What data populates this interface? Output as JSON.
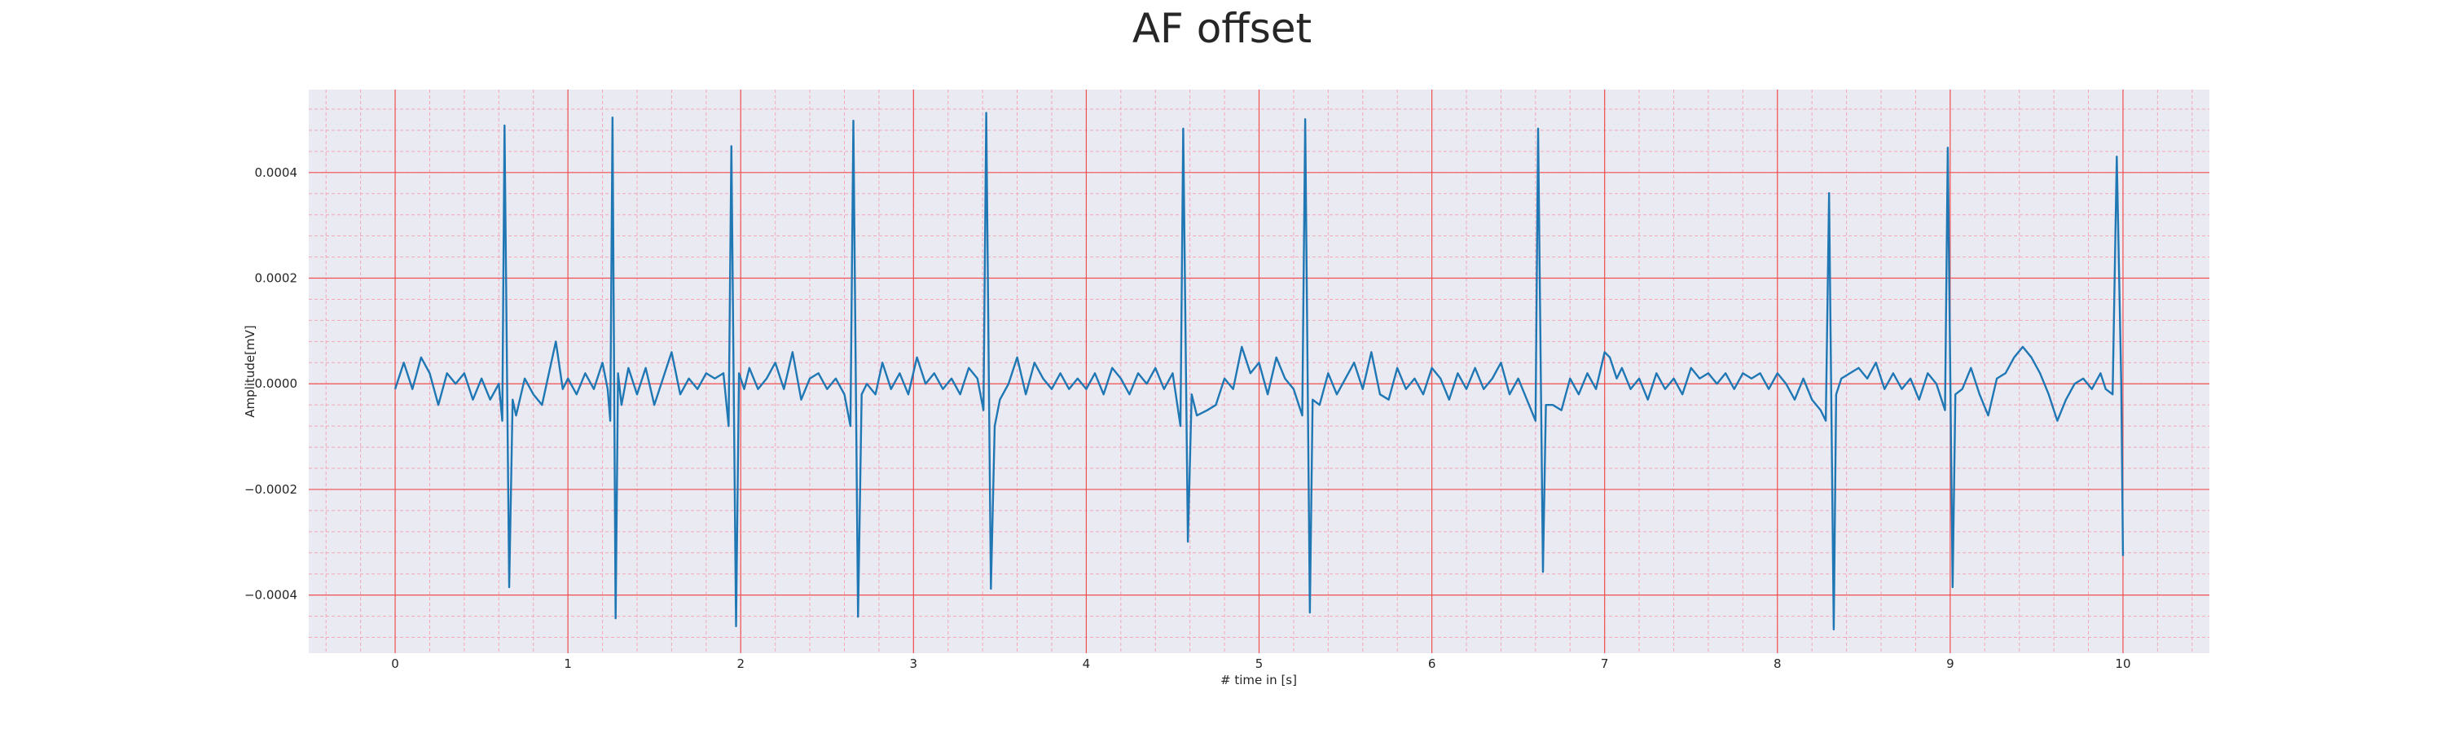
{
  "chart_data": {
    "type": "line",
    "title": "AF offset",
    "xlabel": "# time in [s]",
    "ylabel": "Amplitude[mV]",
    "color": "#1f77b4",
    "grid": true,
    "minor_grid": true,
    "xlim": [
      -0.5,
      10.5
    ],
    "xticks": [
      0,
      1,
      2,
      3,
      4,
      5,
      6,
      7,
      8,
      9,
      10
    ],
    "ylim": [
      -0.00051,
      0.000557
    ],
    "yticks": [
      {
        "value": -0.0004,
        "label": "−0.0004"
      },
      {
        "value": -0.0002,
        "label": "−0.0002"
      },
      {
        "value": 0,
        "label": "0.0000"
      },
      0.0002,
      0.0004
    ],
    "x": [
      0,
      0.05,
      0.1,
      0.15,
      0.2,
      0.25,
      0.3,
      0.35,
      0.4,
      0.45,
      0.5,
      0.55,
      0.6,
      0.62,
      0.633,
      0.66,
      0.68,
      0.7,
      0.75,
      0.8,
      0.85,
      0.93,
      0.97,
      1.0,
      1.05,
      1.1,
      1.15,
      1.2,
      1.23,
      1.245,
      1.258,
      1.276,
      1.29,
      1.31,
      1.35,
      1.4,
      1.45,
      1.5,
      1.55,
      1.6,
      1.65,
      1.7,
      1.75,
      1.8,
      1.85,
      1.9,
      1.93,
      1.946,
      1.973,
      1.99,
      2.02,
      2.05,
      2.1,
      2.15,
      2.2,
      2.25,
      2.3,
      2.35,
      2.4,
      2.45,
      2.5,
      2.55,
      2.6,
      2.635,
      2.652,
      2.679,
      2.7,
      2.73,
      2.78,
      2.82,
      2.87,
      2.92,
      2.97,
      3.02,
      3.07,
      3.12,
      3.17,
      3.22,
      3.27,
      3.32,
      3.37,
      3.405,
      3.421,
      3.448,
      3.47,
      3.5,
      3.55,
      3.6,
      3.65,
      3.7,
      3.75,
      3.8,
      3.85,
      3.9,
      3.95,
      4.0,
      4.05,
      4.1,
      4.15,
      4.2,
      4.25,
      4.3,
      4.35,
      4.4,
      4.45,
      4.5,
      4.545,
      4.561,
      4.588,
      4.61,
      4.64,
      4.7,
      4.75,
      4.8,
      4.85,
      4.9,
      4.95,
      5.0,
      5.05,
      5.1,
      5.15,
      5.2,
      5.25,
      5.267,
      5.294,
      5.31,
      5.35,
      5.4,
      5.45,
      5.5,
      5.55,
      5.6,
      5.65,
      5.7,
      5.75,
      5.8,
      5.85,
      5.9,
      5.95,
      6.0,
      6.05,
      6.1,
      6.15,
      6.2,
      6.25,
      6.3,
      6.35,
      6.4,
      6.45,
      6.5,
      6.55,
      6.6,
      6.615,
      6.643,
      6.66,
      6.7,
      6.75,
      6.8,
      6.85,
      6.9,
      6.95,
      7.0,
      7.03,
      7.07,
      7.1,
      7.15,
      7.2,
      7.25,
      7.3,
      7.35,
      7.4,
      7.45,
      7.5,
      7.55,
      7.6,
      7.65,
      7.7,
      7.75,
      7.8,
      7.85,
      7.9,
      7.95,
      8.0,
      8.05,
      8.1,
      8.15,
      8.2,
      8.25,
      8.28,
      8.299,
      8.326,
      8.34,
      8.37,
      8.42,
      8.47,
      8.52,
      8.57,
      8.62,
      8.67,
      8.72,
      8.77,
      8.82,
      8.87,
      8.92,
      8.97,
      8.986,
      9.014,
      9.03,
      9.07,
      9.12,
      9.17,
      9.22,
      9.27,
      9.32,
      9.37,
      9.42,
      9.47,
      9.52,
      9.57,
      9.62,
      9.67,
      9.72,
      9.77,
      9.82,
      9.87,
      9.9,
      9.94,
      9.964,
      9.99,
      10.0
    ],
    "values": [
      -1e-05,
      4e-05,
      -1e-05,
      5e-05,
      2e-05,
      -4e-05,
      2e-05,
      0,
      2e-05,
      -3e-05,
      1e-05,
      -3e-05,
      0,
      -7e-05,
      0.000489,
      -0.000385,
      -3e-05,
      -6e-05,
      1e-05,
      -2e-05,
      -4e-05,
      8e-05,
      -1e-05,
      1e-05,
      -2e-05,
      2e-05,
      -1e-05,
      4e-05,
      -1e-05,
      -7e-05,
      0.000504,
      -0.000444,
      2e-05,
      -4e-05,
      3e-05,
      -2e-05,
      3e-05,
      -4e-05,
      1e-05,
      6e-05,
      -2e-05,
      1e-05,
      -1e-05,
      2e-05,
      1e-05,
      2e-05,
      -8e-05,
      0.00045,
      -0.000459,
      2e-05,
      -1e-05,
      3e-05,
      -1e-05,
      1e-05,
      4e-05,
      -1e-05,
      6e-05,
      -3e-05,
      1e-05,
      2e-05,
      -1e-05,
      1e-05,
      -2e-05,
      -8e-05,
      0.000498,
      -0.000441,
      -2e-05,
      0,
      -2e-05,
      4e-05,
      -1e-05,
      2e-05,
      -2e-05,
      5e-05,
      0,
      2e-05,
      -1e-05,
      1e-05,
      -2e-05,
      3e-05,
      1e-05,
      -5e-05,
      0.000513,
      -0.000388,
      -8e-05,
      -3e-05,
      0,
      5e-05,
      -2e-05,
      4e-05,
      1e-05,
      -1e-05,
      2e-05,
      -1e-05,
      1e-05,
      -1e-05,
      2e-05,
      -2e-05,
      3e-05,
      1e-05,
      -2e-05,
      2e-05,
      0,
      3e-05,
      -1e-05,
      2e-05,
      -8e-05,
      0.000483,
      -0.000299,
      -2e-05,
      -6e-05,
      -5e-05,
      -4e-05,
      1e-05,
      -1e-05,
      7e-05,
      2e-05,
      4e-05,
      -2e-05,
      5e-05,
      1e-05,
      -1e-05,
      -6e-05,
      0.000501,
      -0.000433,
      -3e-05,
      -4e-05,
      2e-05,
      -2e-05,
      1e-05,
      4e-05,
      -1e-05,
      6e-05,
      -2e-05,
      -3e-05,
      3e-05,
      -1e-05,
      1e-05,
      -2e-05,
      3e-05,
      1e-05,
      -3e-05,
      2e-05,
      -1e-05,
      3e-05,
      -1e-05,
      1e-05,
      4e-05,
      -2e-05,
      1e-05,
      -3e-05,
      -7e-05,
      0.000483,
      -0.000356,
      -4e-05,
      -4e-05,
      -5e-05,
      1e-05,
      -2e-05,
      2e-05,
      -1e-05,
      6e-05,
      5e-05,
      1e-05,
      3e-05,
      -1e-05,
      1e-05,
      -3e-05,
      2e-05,
      -1e-05,
      1e-05,
      -2e-05,
      3e-05,
      1e-05,
      2e-05,
      0,
      2e-05,
      -1e-05,
      2e-05,
      1e-05,
      2e-05,
      -1e-05,
      2e-05,
      0,
      -3e-05,
      1e-05,
      -3e-05,
      -5e-05,
      -7e-05,
      0.000361,
      -0.000465,
      -2e-05,
      1e-05,
      2e-05,
      3e-05,
      1e-05,
      4e-05,
      -1e-05,
      2e-05,
      -1e-05,
      1e-05,
      -3e-05,
      2e-05,
      0,
      -5e-05,
      0.000447,
      -0.000385,
      -2e-05,
      -1e-05,
      3e-05,
      -2e-05,
      -6e-05,
      1e-05,
      2e-05,
      5e-05,
      7e-05,
      5e-05,
      2e-05,
      -2e-05,
      -7e-05,
      -3e-05,
      0,
      1e-05,
      -1e-05,
      2e-05,
      -1e-05,
      -2e-05,
      0.00043,
      0,
      -0.000326
    ]
  }
}
